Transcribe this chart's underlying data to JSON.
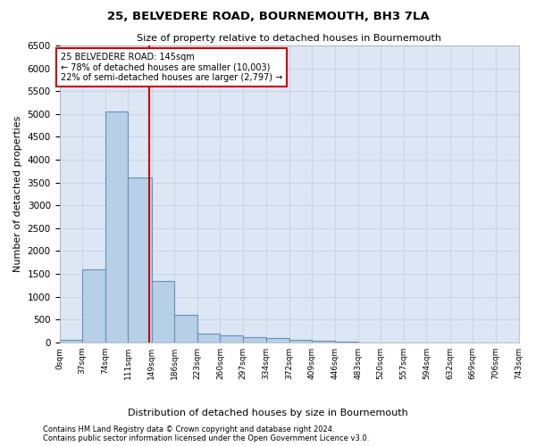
{
  "title": "25, BELVEDERE ROAD, BOURNEMOUTH, BH3 7LA",
  "subtitle": "Size of property relative to detached houses in Bournemouth",
  "xlabel": "Distribution of detached houses by size in Bournemouth",
  "ylabel": "Number of detached properties",
  "footnote1": "Contains HM Land Registry data © Crown copyright and database right 2024.",
  "footnote2": "Contains public sector information licensed under the Open Government Licence v3.0.",
  "annotation_title": "25 BELVEDERE ROAD: 145sqm",
  "annotation_line1": "← 78% of detached houses are smaller (10,003)",
  "annotation_line2": "22% of semi-detached houses are larger (2,797) →",
  "property_size": 145,
  "bar_edges": [
    0,
    37,
    74,
    111,
    149,
    186,
    223,
    260,
    297,
    334,
    372,
    409,
    446,
    483,
    520,
    557,
    594,
    632,
    669,
    706,
    743
  ],
  "bar_heights": [
    50,
    1600,
    5050,
    3600,
    1350,
    600,
    200,
    150,
    120,
    100,
    60,
    30,
    15,
    5,
    2,
    1,
    0,
    0,
    0,
    0
  ],
  "bar_color": "#b8cfe8",
  "bar_edge_color": "#6090c0",
  "vline_color": "#cc0000",
  "annotation_box_color": "#cc0000",
  "grid_color": "#c8d4e4",
  "bg_color": "#dce6f4",
  "ylim": [
    0,
    6500
  ],
  "yticks": [
    0,
    500,
    1000,
    1500,
    2000,
    2500,
    3000,
    3500,
    4000,
    4500,
    5000,
    5500,
    6000,
    6500
  ]
}
